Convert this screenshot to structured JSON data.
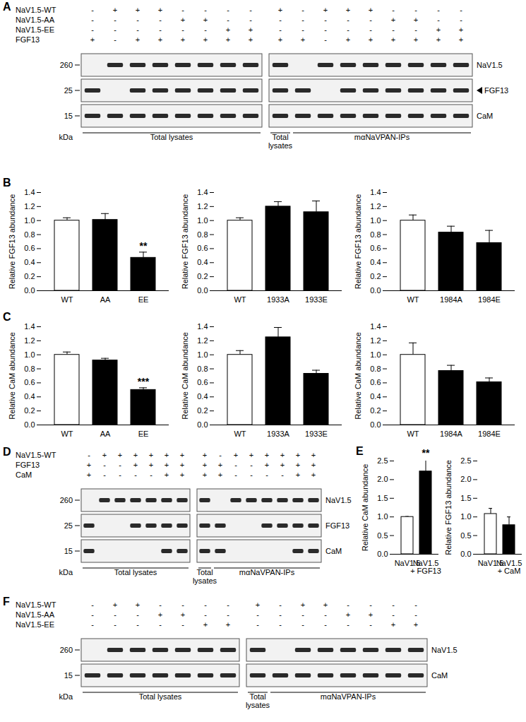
{
  "blots": [
    {
      "letter": "A",
      "conditions": [
        {
          "label": "NaV1.5-WT",
          "signs_left": [
            "-",
            "+",
            "+",
            "+",
            "-",
            "-",
            "-",
            "-"
          ],
          "signs_right": [
            "+",
            "-",
            "+",
            "+",
            "+",
            "-",
            "-",
            "-",
            "-"
          ]
        },
        {
          "label": "NaV1.5-AA",
          "signs_left": [
            "-",
            "-",
            "-",
            "-",
            "+",
            "+",
            "-",
            "-"
          ],
          "signs_right": [
            "-",
            "-",
            "-",
            "-",
            "-",
            "+",
            "+",
            "-",
            "-"
          ]
        },
        {
          "label": "NaV1.5-EE",
          "signs_left": [
            "-",
            "-",
            "-",
            "-",
            "-",
            "-",
            "+",
            "+"
          ],
          "signs_right": [
            "-",
            "-",
            "-",
            "-",
            "-",
            "-",
            "-",
            "+",
            "+"
          ]
        },
        {
          "label": "FGF13",
          "signs_left": [
            "+",
            "-",
            "+",
            "+",
            "+",
            "+",
            "+",
            "+"
          ],
          "signs_right": [
            "+",
            "+",
            "-",
            "+",
            "+",
            "+",
            "+",
            "+",
            "+"
          ]
        }
      ],
      "rows": [
        {
          "label": "NaV1.5",
          "marker": 260
        },
        {
          "label": "FGF13",
          "marker": 25,
          "arrow": true
        },
        {
          "label": "CaM",
          "marker": 15
        }
      ],
      "unit": "kDa",
      "left_group": "Total lysates",
      "right_groups": [
        "Total lysates",
        "mαNaVPAN-IPs"
      ]
    },
    {
      "letter": "D",
      "conditions": [
        {
          "label": "NaV1.5-WT",
          "signs_left": [
            "-",
            "+",
            "+",
            "+",
            "+",
            "+",
            "+"
          ],
          "signs_right": [
            "+",
            "-",
            "+",
            "+",
            "+",
            "+",
            "+",
            "+"
          ]
        },
        {
          "label": "FGF13",
          "signs_left": [
            "+",
            "-",
            "-",
            "+",
            "+",
            "+",
            "+"
          ],
          "signs_right": [
            "+",
            "+",
            "-",
            "-",
            "+",
            "+",
            "+",
            "+"
          ]
        },
        {
          "label": "CaM",
          "signs_left": [
            "+",
            "-",
            "-",
            "-",
            "-",
            "+",
            "+"
          ],
          "signs_right": [
            "+",
            "+",
            "-",
            "-",
            "-",
            "-",
            "+",
            "+"
          ]
        }
      ],
      "rows": [
        {
          "label": "NaV1.5",
          "marker": 260
        },
        {
          "label": "FGF13",
          "marker": 25
        },
        {
          "label": "CaM",
          "marker": 15
        }
      ],
      "unit": "kDa",
      "left_group": "Total lysates",
      "right_groups": [
        "Total lysates",
        "mαNaVPAN-IPs"
      ]
    },
    {
      "letter": "F",
      "conditions": [
        {
          "label": "NaV1.5-WT",
          "signs_left": [
            "-",
            "+",
            "+",
            "-",
            "-",
            "-",
            "-"
          ],
          "signs_right": [
            "+",
            "-",
            "+",
            "+",
            "-",
            "-",
            "-",
            "-"
          ]
        },
        {
          "label": "NaV1.5-AA",
          "signs_left": [
            "-",
            "-",
            "-",
            "+",
            "+",
            "-",
            "-"
          ],
          "signs_right": [
            "-",
            "-",
            "-",
            "-",
            "+",
            "+",
            "-",
            "-"
          ]
        },
        {
          "label": "NaV1.5-EE",
          "signs_left": [
            "-",
            "-",
            "-",
            "-",
            "-",
            "+",
            "+"
          ],
          "signs_right": [
            "-",
            "-",
            "-",
            "-",
            "-",
            "-",
            "+",
            "+"
          ]
        }
      ],
      "rows": [
        {
          "label": "NaV1.5",
          "marker": 260
        },
        {
          "label": "CaM",
          "marker": 15
        }
      ],
      "unit": "kDa",
      "left_group": "Total lysates",
      "right_groups": [
        "Total lysates",
        "mαNaVPAN-IPs"
      ]
    }
  ],
  "chart_data": [
    {
      "panel_letter": "B",
      "type": "bar",
      "categories": [
        "WT",
        "AA",
        "EE"
      ],
      "values": [
        1.0,
        1.01,
        0.47
      ],
      "errors": [
        0.04,
        0.09,
        0.08
      ],
      "colors": [
        "#ffffff",
        "#000000",
        "#000000"
      ],
      "ylim": [
        0,
        1.4
      ],
      "yticks": [
        {
          "value": 0,
          "label": "0.0"
        },
        0.2,
        0.4,
        0.6,
        0.8,
        {
          "value": 1,
          "label": "1.0"
        },
        1.2,
        1.4
      ],
      "y_label": "Relative FGF13 abundance",
      "annotations": [
        {
          "category": "EE",
          "text": "**"
        }
      ]
    },
    {
      "type": "bar",
      "categories": [
        "WT",
        "1933A",
        "1933E"
      ],
      "values": [
        1.0,
        1.2,
        1.12
      ],
      "errors": [
        0.04,
        0.07,
        0.16
      ],
      "colors": [
        "#ffffff",
        "#000000",
        "#000000"
      ],
      "ylim": [
        0,
        1.4
      ],
      "yticks": [
        {
          "value": 0,
          "label": "0.0"
        },
        0.2,
        0.4,
        0.6,
        0.8,
        {
          "value": 1,
          "label": "1.0"
        },
        1.2,
        1.4
      ],
      "y_label": "Relative FGF13 abundance"
    },
    {
      "type": "bar",
      "categories": [
        "WT",
        "1984A",
        "1984E"
      ],
      "values": [
        1.0,
        0.83,
        0.68
      ],
      "errors": [
        0.08,
        0.09,
        0.18
      ],
      "colors": [
        "#ffffff",
        "#000000",
        "#000000"
      ],
      "ylim": [
        0,
        1.4
      ],
      "yticks": [
        {
          "value": 0,
          "label": "0.0"
        },
        0.2,
        0.4,
        0.6,
        0.8,
        {
          "value": 1,
          "label": "1.0"
        },
        1.2,
        1.4
      ],
      "y_label": "Relative FGF13 abundance"
    },
    {
      "panel_letter": "C",
      "type": "bar",
      "categories": [
        "WT",
        "AA",
        "EE"
      ],
      "values": [
        1.0,
        0.92,
        0.5
      ],
      "errors": [
        0.04,
        0.03,
        0.03
      ],
      "colors": [
        "#ffffff",
        "#000000",
        "#000000"
      ],
      "ylim": [
        0,
        1.4
      ],
      "yticks": [
        {
          "value": 0,
          "label": "0.0"
        },
        0.2,
        0.4,
        0.6,
        0.8,
        {
          "value": 1,
          "label": "1.0"
        },
        1.2,
        1.4
      ],
      "y_label": "Relative CaM abundance",
      "annotations": [
        {
          "category": "EE",
          "text": "***"
        }
      ]
    },
    {
      "type": "bar",
      "categories": [
        "WT",
        "1933A",
        "1933E"
      ],
      "values": [
        1.0,
        1.25,
        0.73
      ],
      "errors": [
        0.06,
        0.14,
        0.05
      ],
      "colors": [
        "#ffffff",
        "#000000",
        "#000000"
      ],
      "ylim": [
        0,
        1.4
      ],
      "yticks": [
        {
          "value": 0,
          "label": "0.0"
        },
        0.2,
        0.4,
        0.6,
        0.8,
        {
          "value": 1,
          "label": "1.0"
        },
        1.2,
        1.4
      ],
      "y_label": "Relative CaM abundance"
    },
    {
      "type": "bar",
      "categories": [
        "WT",
        "1984A",
        "1984E"
      ],
      "values": [
        1.0,
        0.77,
        0.61
      ],
      "errors": [
        0.17,
        0.08,
        0.06
      ],
      "colors": [
        "#ffffff",
        "#000000",
        "#000000"
      ],
      "ylim": [
        0,
        1.4
      ],
      "yticks": [
        {
          "value": 0,
          "label": "0.0"
        },
        0.2,
        0.4,
        0.6,
        0.8,
        {
          "value": 1,
          "label": "1.0"
        },
        1.2,
        1.4
      ],
      "y_label": "Relative CaM abundance"
    },
    {
      "panel_letter": "E",
      "type": "bar",
      "categories": [
        "NaV1.5",
        "NaV1.5\n+ FGF13"
      ],
      "values": [
        1.0,
        2.22
      ],
      "errors": [
        0.01,
        0.33
      ],
      "colors": [
        "#ffffff",
        "#000000"
      ],
      "ylim": [
        0,
        2.5
      ],
      "yticks": [
        {
          "value": 0,
          "label": "0.0"
        },
        0.5,
        {
          "value": 1,
          "label": "1.0"
        },
        1.5,
        {
          "value": 2,
          "label": "2.0"
        },
        2.5
      ],
      "y_label": "Relative CaM abundance",
      "annotations": [
        {
          "category": "NaV1.5\n+ FGF13",
          "text": "**"
        }
      ]
    },
    {
      "type": "bar",
      "categories": [
        "NaV1.5",
        "NaV1.5\n+ CaM"
      ],
      "values": [
        1.08,
        0.78
      ],
      "errors": [
        0.15,
        0.22
      ],
      "colors": [
        "#ffffff",
        "#000000"
      ],
      "ylim": [
        0,
        2.5
      ],
      "yticks": [
        {
          "value": 0,
          "label": "0.0"
        },
        0.5,
        {
          "value": 1,
          "label": "1.0"
        },
        1.5,
        {
          "value": 2,
          "label": "2.0"
        },
        2.5
      ],
      "y_label": "Relative FGF13 abundance"
    }
  ]
}
